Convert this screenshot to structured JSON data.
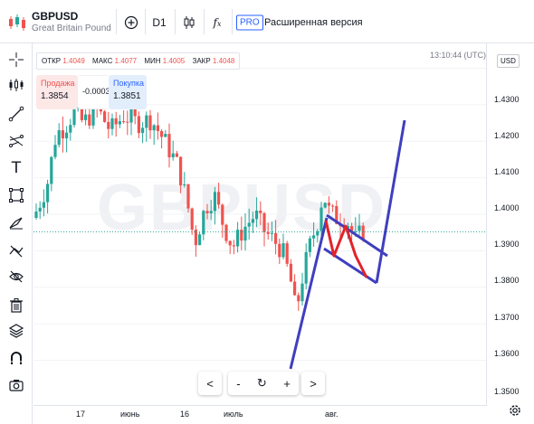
{
  "header": {
    "symbol": "GBPUSD",
    "symbol_name": "Great Britain Pound vs U",
    "timeframe": "D1",
    "pro_badge": "PRO",
    "pro_text": "Расширенная версия"
  },
  "ohlc": {
    "open_label": "ОТКР",
    "open_value": "1.4049",
    "high_label": "МАКС",
    "high_value": "1.4077",
    "low_label": "МИН",
    "low_value": "1.4005",
    "close_label": "ЗАКР",
    "close_value": "1.4048"
  },
  "trade": {
    "sell_label": "Продажа",
    "sell_value": "1.3854",
    "spread": "-0.0003",
    "buy_label": "Покупка",
    "buy_value": "1.3851"
  },
  "time_display": "13:10:44 (UTC)",
  "currency": "USD",
  "watermark": "GBPUSD",
  "price_ticks": [
    "1.4300",
    "1.4200",
    "1.4100",
    "1.4000",
    "1.3900",
    "1.3800",
    "1.3700",
    "1.3600",
    "1.3500"
  ],
  "time_ticks": [
    "17",
    "июнь",
    "16",
    "июль",
    "авг."
  ],
  "nav": {
    "prev": "<",
    "zoom_out": "-",
    "reset": "↻",
    "zoom_in": "+",
    "next": ">"
  },
  "colors": {
    "up": "#26a69a",
    "down": "#ef5350",
    "drawing_blue": "#3f3fbf",
    "drawing_red": "#e3222a",
    "accent": "#2962ff"
  },
  "icons": [
    "candles-logo-icon",
    "add-compare-icon",
    "candle-type-icon",
    "indicators-icon",
    "crosshair-icon",
    "candle-tool-icon",
    "trend-line-icon",
    "fib-tool-icon",
    "text-icon",
    "rectangle-icon",
    "brush-icon",
    "hide-drawings-icon",
    "eye-icon",
    "delete-icon",
    "layers-icon",
    "magnet-icon",
    "screenshot-icon",
    "settings-icon"
  ]
}
